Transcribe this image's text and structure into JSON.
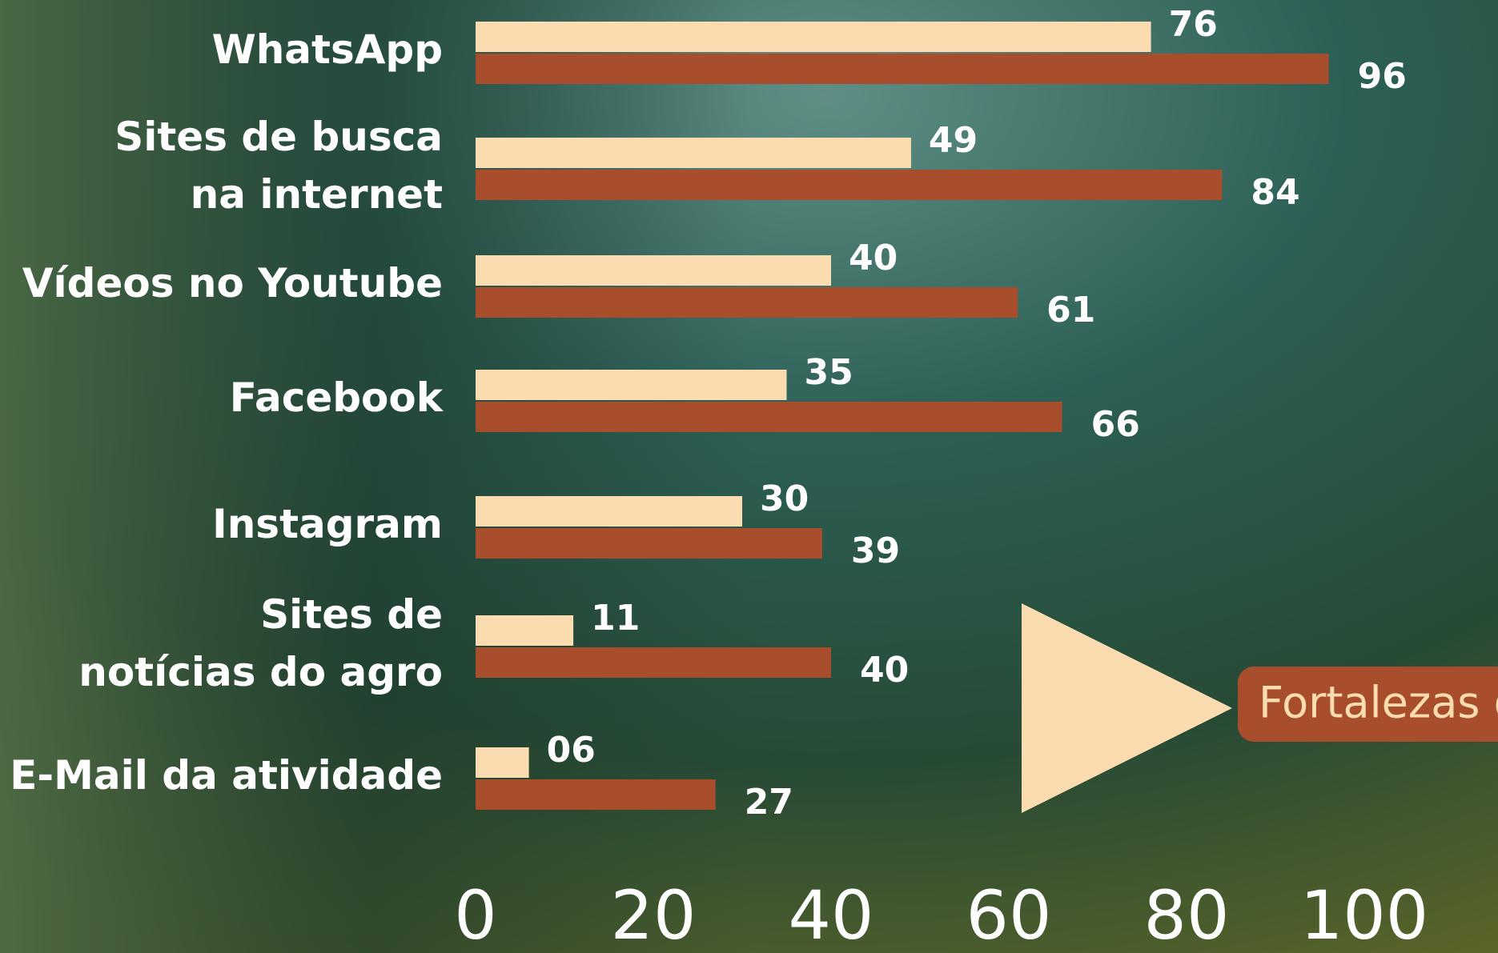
{
  "chart_data": {
    "type": "bar",
    "orientation": "horizontal",
    "categories": [
      [
        "WhatsApp"
      ],
      [
        "Sites de busca",
        "na internet"
      ],
      [
        "Vídeos no Youtube"
      ],
      [
        "Facebook"
      ],
      [
        "Instagram"
      ],
      [
        "Sites de",
        "notícias do agro"
      ],
      [
        "E-Mail da atividade"
      ]
    ],
    "series": [
      {
        "color": "#fadcb0",
        "values": [
          76,
          49,
          40,
          35,
          30,
          11,
          6
        ],
        "value_labels": [
          "76",
          "49",
          "40",
          "35",
          "30",
          "11",
          "06"
        ]
      },
      {
        "color": "#a84e2c",
        "values": [
          96,
          84,
          61,
          66,
          39,
          40,
          27
        ]
      }
    ],
    "xlim": [
      0,
      100
    ],
    "xticks": [
      0,
      20,
      40,
      60,
      80,
      100
    ],
    "callout": "Fortalezas d"
  }
}
